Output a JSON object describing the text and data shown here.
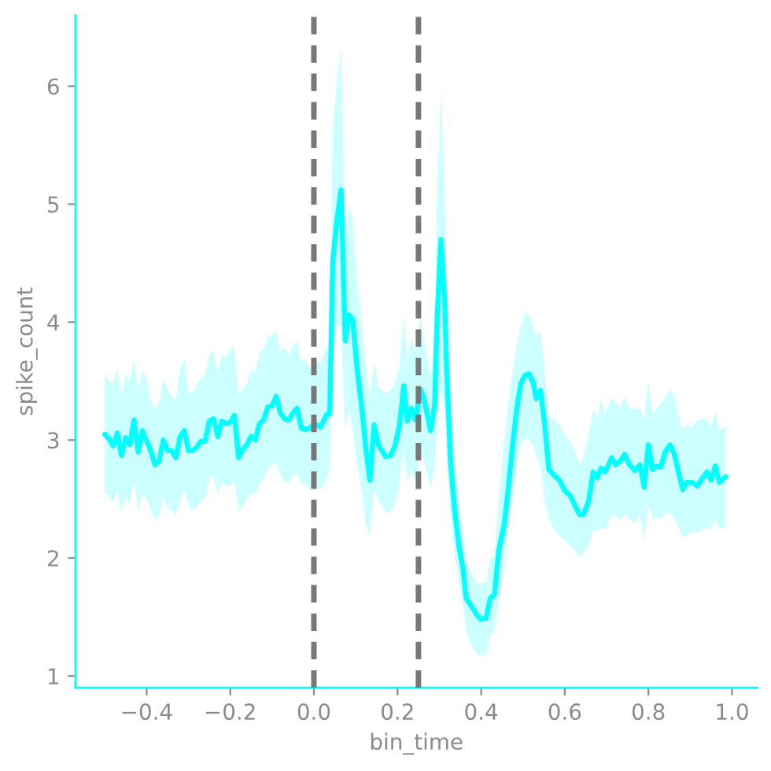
{
  "chart_data": {
    "type": "line",
    "xlabel": "bin_time",
    "ylabel": "spike_count",
    "xlim": [
      -0.57,
      1.06
    ],
    "ylim": [
      0.9,
      6.6
    ],
    "xticks": [
      {
        "value": -0.4,
        "label": "−0.4"
      },
      {
        "value": -0.2,
        "label": "−0.2"
      },
      {
        "value": 0,
        "label": "0.0"
      },
      0.2,
      0.4,
      0.6,
      0.8,
      {
        "value": 1,
        "label": "1.0"
      }
    ],
    "yticks": [
      1,
      2,
      3,
      4,
      5,
      6
    ],
    "ref_lines": [
      {
        "axis": "x",
        "value": 0,
        "color": "#777777",
        "line_style": "dashed"
      },
      {
        "axis": "x",
        "value": 0.25,
        "color": "#777777",
        "line_style": "dashed"
      }
    ],
    "series": [
      {
        "color": "#00ffff",
        "x": [
          -0.5,
          -0.49,
          -0.48,
          -0.47,
          -0.46,
          -0.45,
          -0.44,
          -0.43,
          -0.42,
          -0.41,
          -0.4,
          -0.39,
          -0.38,
          -0.37,
          -0.36,
          -0.35,
          -0.34,
          -0.33,
          -0.32,
          -0.31,
          -0.3,
          -0.29,
          -0.28,
          -0.27,
          -0.26,
          -0.25,
          -0.24,
          -0.23,
          -0.22,
          -0.21,
          -0.2,
          -0.19,
          -0.18,
          -0.17,
          -0.16,
          -0.15,
          -0.14,
          -0.13,
          -0.12,
          -0.11,
          -0.1,
          -0.09,
          -0.08,
          -0.07,
          -0.06,
          -0.05,
          -0.04,
          -0.03,
          -0.02,
          -0.01,
          0.0,
          0.016,
          0.031,
          0.038,
          0.045,
          0.055,
          0.065,
          0.075,
          0.084,
          0.093,
          0.103,
          0.115,
          0.125,
          0.134,
          0.144,
          0.155,
          0.172,
          0.184,
          0.194,
          0.205,
          0.215,
          0.223,
          0.233,
          0.243,
          0.255,
          0.263,
          0.273,
          0.279,
          0.289,
          0.294,
          0.304,
          0.313,
          0.317,
          0.327,
          0.337,
          0.347,
          0.357,
          0.364,
          0.377,
          0.389,
          0.399,
          0.412,
          0.422,
          0.432,
          0.442,
          0.455,
          0.465,
          0.475,
          0.485,
          0.495,
          0.505,
          0.515,
          0.525,
          0.532,
          0.542,
          0.552,
          0.562,
          0.575,
          0.587,
          0.6,
          0.613,
          0.625,
          0.635,
          0.645,
          0.657,
          0.668,
          0.678,
          0.687,
          0.697,
          0.712,
          0.722,
          0.733,
          0.743,
          0.755,
          0.768,
          0.78,
          0.79,
          0.8,
          0.81,
          0.82,
          0.83,
          0.84,
          0.852,
          0.862,
          0.872,
          0.882,
          0.892,
          0.905,
          0.917,
          0.93,
          0.94,
          0.95,
          0.96,
          0.97,
          0.985
        ],
        "values": [
          3.05,
          3.01,
          2.95,
          3.06,
          2.87,
          3.02,
          2.96,
          3.17,
          2.9,
          3.08,
          2.99,
          2.91,
          2.79,
          2.82,
          3.0,
          2.91,
          2.91,
          2.85,
          3.03,
          3.08,
          2.91,
          2.91,
          2.94,
          2.99,
          2.99,
          3.16,
          3.18,
          3.03,
          3.16,
          3.14,
          3.15,
          3.21,
          2.85,
          2.92,
          2.96,
          3.03,
          3.0,
          3.14,
          3.17,
          3.28,
          3.29,
          3.37,
          3.23,
          3.18,
          3.17,
          3.23,
          3.27,
          3.1,
          3.09,
          3.1,
          3.14,
          3.11,
          3.22,
          3.22,
          4.51,
          4.86,
          5.12,
          3.84,
          4.06,
          4.02,
          3.62,
          3.26,
          2.91,
          2.66,
          3.13,
          2.95,
          2.86,
          2.87,
          2.95,
          3.13,
          3.46,
          3.16,
          3.27,
          3.17,
          3.43,
          3.35,
          3.19,
          3.08,
          3.3,
          3.97,
          4.7,
          4.15,
          3.66,
          2.8,
          2.4,
          2.1,
          1.9,
          1.66,
          1.59,
          1.52,
          1.48,
          1.49,
          1.66,
          1.69,
          2.06,
          2.28,
          2.59,
          2.95,
          3.26,
          3.48,
          3.55,
          3.56,
          3.48,
          3.35,
          3.42,
          3.13,
          2.75,
          2.7,
          2.66,
          2.57,
          2.53,
          2.44,
          2.37,
          2.37,
          2.48,
          2.73,
          2.68,
          2.76,
          2.73,
          2.85,
          2.79,
          2.82,
          2.88,
          2.79,
          2.74,
          2.79,
          2.6,
          2.96,
          2.75,
          2.78,
          2.77,
          2.9,
          2.96,
          2.88,
          2.73,
          2.58,
          2.64,
          2.64,
          2.61,
          2.68,
          2.73,
          2.66,
          2.78,
          2.64,
          2.69
        ],
        "upper": [
          3.56,
          3.5,
          3.48,
          3.61,
          3.37,
          3.56,
          3.5,
          3.68,
          3.43,
          3.59,
          3.52,
          3.34,
          3.26,
          3.31,
          3.52,
          3.43,
          3.37,
          3.34,
          3.6,
          3.7,
          3.4,
          3.41,
          3.48,
          3.52,
          3.56,
          3.72,
          3.76,
          3.57,
          3.72,
          3.71,
          3.76,
          3.79,
          3.37,
          3.43,
          3.48,
          3.59,
          3.57,
          3.75,
          3.77,
          3.88,
          3.89,
          3.94,
          3.75,
          3.79,
          3.72,
          3.79,
          3.84,
          3.66,
          3.68,
          3.61,
          3.68,
          3.66,
          3.79,
          3.78,
          5.67,
          6.02,
          6.33,
          4.78,
          5.0,
          4.86,
          4.38,
          3.97,
          3.62,
          3.35,
          3.67,
          3.44,
          3.4,
          3.42,
          3.49,
          3.62,
          4.06,
          3.71,
          3.85,
          3.76,
          4.05,
          3.85,
          3.67,
          3.53,
          3.8,
          5.04,
          5.98,
          5.0,
          4.33,
          3.4,
          2.8,
          2.5,
          2.22,
          1.95,
          1.88,
          1.79,
          1.79,
          1.79,
          2.01,
          2.01,
          2.5,
          2.99,
          3.3,
          3.57,
          3.8,
          3.97,
          4.08,
          4.06,
          3.95,
          3.88,
          3.93,
          3.57,
          3.19,
          3.17,
          3.13,
          3.04,
          2.99,
          2.9,
          2.79,
          2.86,
          3.04,
          3.26,
          3.19,
          3.35,
          3.22,
          3.36,
          3.31,
          3.28,
          3.37,
          3.26,
          3.26,
          3.28,
          3.17,
          3.51,
          3.22,
          3.27,
          3.31,
          3.37,
          3.44,
          3.37,
          3.22,
          3.09,
          3.13,
          3.11,
          3.17,
          3.18,
          3.17,
          3.11,
          3.24,
          3.08,
          3.11
        ],
        "lower": [
          2.56,
          2.52,
          2.47,
          2.57,
          2.38,
          2.52,
          2.45,
          2.65,
          2.4,
          2.54,
          2.5,
          2.4,
          2.32,
          2.36,
          2.52,
          2.43,
          2.4,
          2.36,
          2.49,
          2.58,
          2.45,
          2.4,
          2.43,
          2.49,
          2.5,
          2.67,
          2.7,
          2.54,
          2.64,
          2.61,
          2.61,
          2.65,
          2.38,
          2.45,
          2.49,
          2.56,
          2.54,
          2.63,
          2.67,
          2.76,
          2.79,
          2.81,
          2.7,
          2.65,
          2.63,
          2.7,
          2.72,
          2.61,
          2.63,
          2.58,
          2.61,
          2.58,
          2.68,
          2.75,
          3.71,
          3.97,
          3.97,
          3.08,
          3.26,
          3.08,
          2.81,
          2.55,
          2.28,
          2.19,
          2.59,
          2.48,
          2.39,
          2.39,
          2.46,
          2.64,
          2.95,
          2.64,
          2.75,
          2.64,
          2.91,
          2.82,
          2.68,
          2.59,
          2.77,
          3.08,
          3.44,
          3.22,
          2.9,
          2.35,
          2.02,
          1.8,
          1.6,
          1.38,
          1.26,
          1.19,
          1.17,
          1.18,
          1.35,
          1.39,
          1.61,
          1.88,
          2.24,
          2.5,
          2.77,
          2.95,
          3.02,
          2.99,
          2.95,
          2.86,
          2.77,
          2.5,
          2.33,
          2.24,
          2.19,
          2.15,
          2.1,
          2.06,
          2.01,
          2.04,
          2.1,
          2.24,
          2.23,
          2.26,
          2.24,
          2.37,
          2.35,
          2.33,
          2.37,
          2.33,
          2.29,
          2.37,
          2.15,
          2.46,
          2.33,
          2.35,
          2.33,
          2.39,
          2.38,
          2.33,
          2.26,
          2.17,
          2.2,
          2.22,
          2.22,
          2.24,
          2.26,
          2.24,
          2.33,
          2.25,
          2.26
        ]
      }
    ]
  }
}
